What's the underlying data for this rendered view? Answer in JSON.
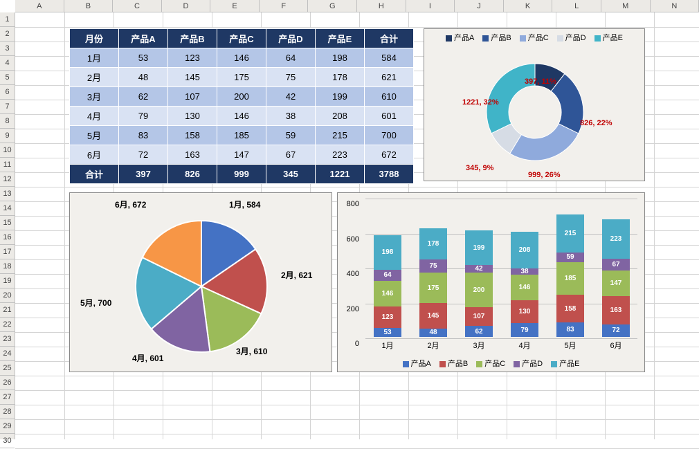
{
  "spreadsheet": {
    "columns": [
      "A",
      "B",
      "C",
      "D",
      "E",
      "F",
      "G",
      "H",
      "I",
      "J",
      "K",
      "L",
      "M",
      "N"
    ],
    "row_count": 30
  },
  "table": {
    "headers": [
      "月份",
      "产品A",
      "产品B",
      "产品C",
      "产品D",
      "产品E",
      "合计"
    ],
    "rows": [
      [
        "1月",
        53,
        123,
        146,
        64,
        198,
        584
      ],
      [
        "2月",
        48,
        145,
        175,
        75,
        178,
        621
      ],
      [
        "3月",
        62,
        107,
        200,
        42,
        199,
        610
      ],
      [
        "4月",
        79,
        130,
        146,
        38,
        208,
        601
      ],
      [
        "5月",
        83,
        158,
        185,
        59,
        215,
        700
      ],
      [
        "6月",
        72,
        163,
        147,
        67,
        223,
        672
      ]
    ],
    "totals": [
      "合计",
      397,
      826,
      999,
      345,
      1221,
      3788
    ],
    "header_bg": "#1f3864",
    "header_color": "#ffffff",
    "row_even_bg": "#d9e2f3",
    "row_odd_bg": "#b4c6e7"
  },
  "donut": {
    "legend": [
      "产品A",
      "产品B",
      "产品C",
      "产品D",
      "产品E"
    ],
    "values": [
      397,
      826,
      999,
      345,
      1221
    ],
    "percents": [
      "11%",
      "22%",
      "26%",
      "9%",
      "32%"
    ],
    "label_texts": [
      "397, 11%",
      "826, 22%",
      "999, 26%",
      "345, 9%",
      "1221, 32%"
    ],
    "colors": [
      "#1f3864",
      "#2f5597",
      "#8faadc",
      "#d6dce5",
      "#40b4c8"
    ],
    "label_color": "#c00000"
  },
  "pie": {
    "labels": [
      "1月, 584",
      "2月, 621",
      "3月, 610",
      "4月, 601",
      "5月, 700",
      "6月, 672"
    ],
    "values": [
      584,
      621,
      610,
      601,
      700,
      672
    ],
    "colors": [
      "#4472c4",
      "#c0504d",
      "#9bbb59",
      "#8064a2",
      "#4bacc6",
      "#f79646"
    ]
  },
  "bar": {
    "categories": [
      "1月",
      "2月",
      "3月",
      "4月",
      "5月",
      "6月"
    ],
    "series": [
      "产品A",
      "产品B",
      "产品C",
      "产品D",
      "产品E"
    ],
    "colors": [
      "#4472c4",
      "#c0504d",
      "#9bbb59",
      "#8064a2",
      "#4bacc6"
    ],
    "data": [
      [
        53,
        123,
        146,
        64,
        198
      ],
      [
        48,
        145,
        175,
        75,
        178
      ],
      [
        62,
        107,
        200,
        42,
        199
      ],
      [
        79,
        130,
        146,
        38,
        208
      ],
      [
        83,
        158,
        185,
        59,
        215
      ],
      [
        72,
        163,
        147,
        67,
        223
      ]
    ],
    "ymax": 800,
    "ytick_step": 200
  }
}
